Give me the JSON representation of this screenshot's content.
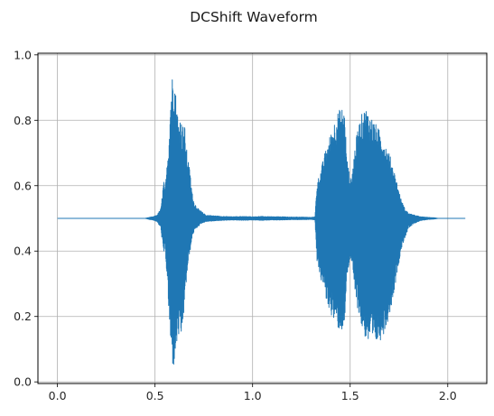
{
  "chart_data": {
    "type": "line",
    "title": "DCShift Waveform",
    "xlabel": "",
    "ylabel": "",
    "xlim": [
      -0.1,
      2.2
    ],
    "ylim": [
      -0.005,
      1.005
    ],
    "x_ticks": [
      0.0,
      0.5,
      1.0,
      1.5,
      2.0
    ],
    "x_tick_labels": [
      "0.0",
      "0.5",
      "1.0",
      "1.5",
      "2.0"
    ],
    "y_ticks": [
      0.0,
      0.2,
      0.4,
      0.6,
      0.8,
      1.0
    ],
    "y_tick_labels": [
      "0.0",
      "0.2",
      "0.4",
      "0.6",
      "0.8",
      "1.0"
    ],
    "grid": true,
    "legend": "none",
    "series": [
      {
        "color": "#1f77b4",
        "x_range": [
          0.0,
          2.09
        ],
        "baseline": 0.5,
        "envelope": {
          "x": [
            0.0,
            0.45,
            0.47,
            0.49,
            0.51,
            0.53,
            0.545,
            0.55,
            0.56,
            0.57,
            0.58,
            0.59,
            0.595,
            0.6,
            0.61,
            0.62,
            0.63,
            0.64,
            0.65,
            0.66,
            0.67,
            0.68,
            0.69,
            0.7,
            0.72,
            0.74,
            0.76,
            0.8,
            0.85,
            0.9,
            0.95,
            1.0,
            1.05,
            1.1,
            1.15,
            1.2,
            1.25,
            1.3,
            1.32,
            1.325,
            1.33,
            1.35,
            1.37,
            1.38,
            1.4,
            1.42,
            1.44,
            1.46,
            1.475,
            1.48,
            1.5,
            1.51,
            1.52,
            1.54,
            1.56,
            1.58,
            1.6,
            1.62,
            1.64,
            1.66,
            1.68,
            1.7,
            1.72,
            1.74,
            1.76,
            1.78,
            1.8,
            1.83,
            1.86,
            1.9,
            1.93,
            1.95,
            2.09
          ],
          "upper": [
            0.5,
            0.5,
            0.503,
            0.505,
            0.51,
            0.53,
            0.62,
            0.58,
            0.65,
            0.74,
            0.88,
            0.95,
            0.96,
            0.93,
            0.86,
            0.8,
            0.82,
            0.78,
            0.8,
            0.72,
            0.68,
            0.64,
            0.58,
            0.55,
            0.53,
            0.52,
            0.51,
            0.508,
            0.506,
            0.505,
            0.506,
            0.505,
            0.506,
            0.505,
            0.505,
            0.504,
            0.504,
            0.503,
            0.505,
            0.56,
            0.61,
            0.65,
            0.7,
            0.72,
            0.76,
            0.8,
            0.83,
            0.84,
            0.82,
            0.7,
            0.62,
            0.64,
            0.7,
            0.78,
            0.82,
            0.84,
            0.82,
            0.8,
            0.78,
            0.76,
            0.73,
            0.7,
            0.66,
            0.61,
            0.56,
            0.53,
            0.515,
            0.51,
            0.505,
            0.503,
            0.502,
            0.5,
            0.5
          ],
          "lower": [
            0.5,
            0.5,
            0.497,
            0.495,
            0.49,
            0.47,
            0.38,
            0.42,
            0.33,
            0.22,
            0.1,
            0.05,
            0.04,
            0.06,
            0.1,
            0.14,
            0.1,
            0.16,
            0.22,
            0.3,
            0.36,
            0.4,
            0.44,
            0.46,
            0.475,
            0.485,
            0.49,
            0.492,
            0.494,
            0.495,
            0.494,
            0.495,
            0.494,
            0.495,
            0.495,
            0.496,
            0.496,
            0.497,
            0.495,
            0.43,
            0.37,
            0.31,
            0.28,
            0.24,
            0.21,
            0.18,
            0.16,
            0.155,
            0.17,
            0.3,
            0.38,
            0.36,
            0.28,
            0.22,
            0.16,
            0.13,
            0.11,
            0.1,
            0.12,
            0.13,
            0.16,
            0.2,
            0.26,
            0.33,
            0.4,
            0.44,
            0.47,
            0.485,
            0.493,
            0.497,
            0.498,
            0.5,
            0.5
          ]
        }
      }
    ]
  }
}
